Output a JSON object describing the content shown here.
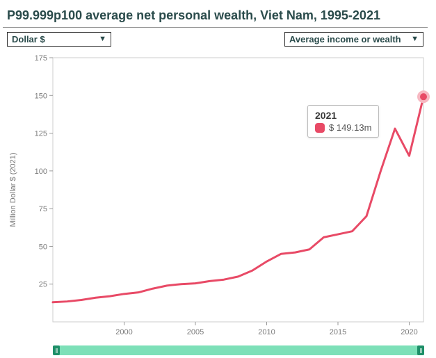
{
  "title": "P99.999p100 average net personal wealth, Viet Nam, 1995-2021",
  "left_select": "Dollar $",
  "right_select": "Average income or wealth",
  "chart": {
    "type": "line",
    "y_label": "Million Dollar $ (2021)",
    "x_min": 1995,
    "x_max": 2021,
    "y_min": 0,
    "y_max": 175,
    "y_ticks": [
      25,
      50,
      75,
      100,
      125,
      150,
      175
    ],
    "x_ticks": [
      2000,
      2005,
      2010,
      2015,
      2020
    ],
    "line_color": "#e84a66",
    "line_width": 3,
    "highlight_ring_color": "#f7b8c2",
    "background_color": "#ffffff",
    "grid_color": "#e6e6e6",
    "axis_text_color": "#7a7a7a",
    "series": [
      {
        "x": 1995,
        "y": 13
      },
      {
        "x": 1996,
        "y": 13.5
      },
      {
        "x": 1997,
        "y": 14.5
      },
      {
        "x": 1998,
        "y": 16
      },
      {
        "x": 1999,
        "y": 17
      },
      {
        "x": 2000,
        "y": 18.5
      },
      {
        "x": 2001,
        "y": 19.5
      },
      {
        "x": 2002,
        "y": 22
      },
      {
        "x": 2003,
        "y": 24
      },
      {
        "x": 2004,
        "y": 25
      },
      {
        "x": 2005,
        "y": 25.5
      },
      {
        "x": 2006,
        "y": 27
      },
      {
        "x": 2007,
        "y": 28
      },
      {
        "x": 2008,
        "y": 30
      },
      {
        "x": 2009,
        "y": 34
      },
      {
        "x": 2010,
        "y": 40
      },
      {
        "x": 2011,
        "y": 45
      },
      {
        "x": 2012,
        "y": 46
      },
      {
        "x": 2013,
        "y": 48
      },
      {
        "x": 2014,
        "y": 56
      },
      {
        "x": 2015,
        "y": 58
      },
      {
        "x": 2016,
        "y": 60
      },
      {
        "x": 2017,
        "y": 70
      },
      {
        "x": 2018,
        "y": 100
      },
      {
        "x": 2019,
        "y": 128
      },
      {
        "x": 2020,
        "y": 110
      },
      {
        "x": 2021,
        "y": 149.13
      }
    ]
  },
  "tooltip": {
    "year": "2021",
    "value_label": "$ 149.13m",
    "swatch_color": "#e84a66"
  },
  "slider": {
    "track_color": "#7de0b8",
    "handle_color": "#1e8f68"
  }
}
